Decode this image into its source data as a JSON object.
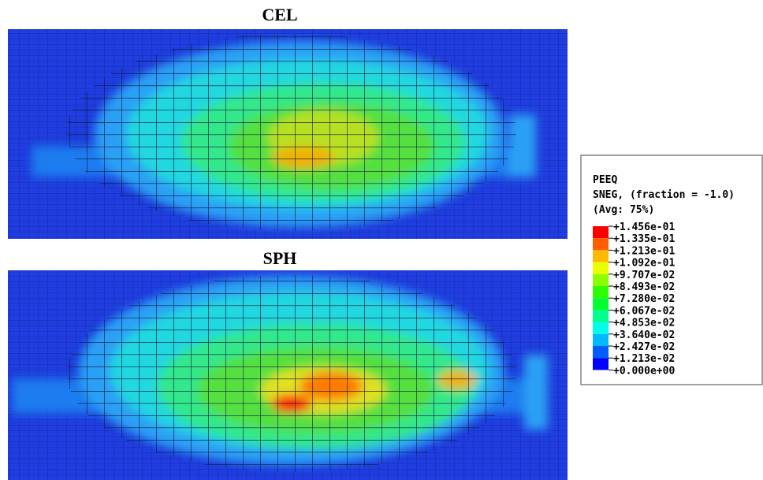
{
  "panels": [
    {
      "title": "CEL"
    },
    {
      "title": "SPH"
    }
  ],
  "legend": {
    "title_lines": [
      "PEEQ",
      "SNEG, (fraction = -1.0)",
      "(Avg: 75%)"
    ],
    "labels": [
      "+1.456e-01",
      "+1.335e-01",
      "+1.213e-01",
      "+1.092e-01",
      "+9.707e-02",
      "+8.493e-02",
      "+7.280e-02",
      "+6.067e-02",
      "+4.853e-02",
      "+3.640e-02",
      "+2.427e-02",
      "+1.213e-02",
      "+0.000e+00"
    ],
    "colors": [
      "#ff0000",
      "#ff5d00",
      "#ffb900",
      "#e9ff00",
      "#8bff00",
      "#2eff00",
      "#00ff2e",
      "#00ff8b",
      "#00ffe9",
      "#00b9ff",
      "#005dff",
      "#0000ff"
    ]
  }
}
